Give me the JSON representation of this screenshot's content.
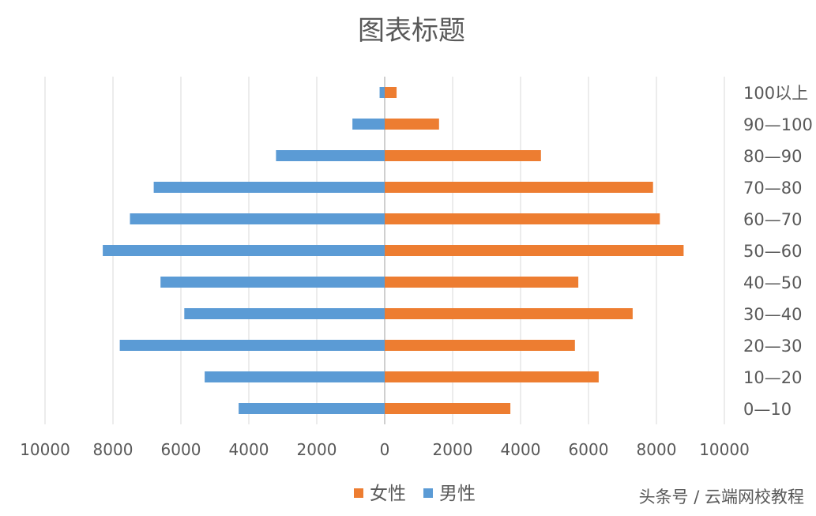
{
  "chart_data": {
    "type": "bar",
    "orientation": "horizontal",
    "title": "图表标题",
    "categories": [
      "0—10",
      "10—20",
      "20—30",
      "30—40",
      "40—50",
      "50—60",
      "60—70",
      "70—80",
      "80—90",
      "90—100",
      "100以上"
    ],
    "series": [
      {
        "name": "女性",
        "direction": "right",
        "color": "#ED7D31",
        "values": [
          3700,
          6300,
          5600,
          7300,
          5700,
          8800,
          8100,
          7900,
          4600,
          1600,
          350
        ]
      },
      {
        "name": "男性",
        "direction": "left",
        "color": "#5B9BD5",
        "values": [
          4300,
          5300,
          7800,
          5900,
          6600,
          8300,
          7500,
          6800,
          3200,
          950,
          150
        ]
      }
    ],
    "xlim": [
      -10000,
      10000
    ],
    "x_tick_labels": [
      "10000",
      "8000",
      "6000",
      "4000",
      "2000",
      "0",
      "2000",
      "4000",
      "6000",
      "8000",
      "10000"
    ],
    "grid": true,
    "legend_position": "bottom",
    "category_axis_position": "right"
  },
  "watermark": "头条号 / 云端网校教程",
  "colors": {
    "text": "#595959",
    "grid": "#D9D9D9",
    "axis": "#BFBFBF"
  }
}
